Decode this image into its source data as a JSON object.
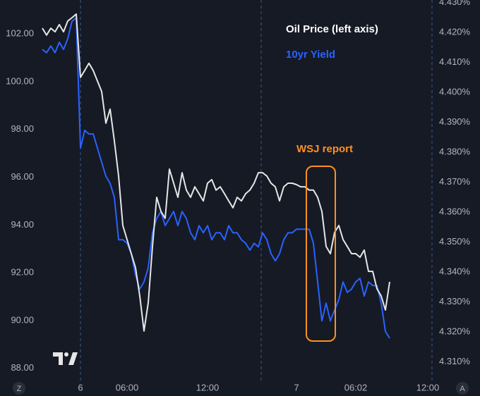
{
  "chart_data": {
    "type": "line",
    "categories": [
      null,
      null,
      null,
      null,
      null,
      null,
      null,
      null,
      null,
      "6",
      null,
      null,
      null,
      null,
      null,
      null,
      null,
      null,
      null,
      null,
      "06:00",
      null,
      null,
      null,
      null,
      null,
      null,
      null,
      null,
      null,
      null,
      null,
      null,
      null,
      null,
      null,
      null,
      null,
      null,
      "12:00",
      null,
      null,
      null,
      null,
      null,
      null,
      null,
      null,
      null,
      null,
      null,
      null,
      null,
      null,
      null,
      null,
      null,
      null,
      null,
      null,
      "7",
      null,
      null,
      null,
      null,
      null,
      null,
      null,
      null,
      null,
      null,
      null,
      null,
      null,
      "06:02",
      null,
      null,
      null,
      null,
      null,
      null,
      null,
      null,
      null,
      null,
      null,
      null,
      null,
      null,
      null,
      null,
      "12:00",
      null
    ],
    "series": [
      {
        "name": "Oil Price (left axis)",
        "color": "#e6e6e6",
        "axis": "y",
        "values": [
          102.24,
          101.95,
          102.24,
          102.09,
          102.39,
          102.09,
          102.54,
          102.68,
          102.83,
          100.18,
          100.47,
          100.77,
          100.47,
          100.03,
          99.59,
          98.26,
          98.85,
          97.52,
          96.05,
          93.98,
          93.39,
          92.8,
          92.21,
          91.03,
          89.56,
          90.74,
          93.1,
          95.16,
          94.57,
          94.28,
          96.34,
          95.75,
          95.16,
          96.19,
          95.46,
          95.16,
          95.6,
          95.31,
          95.01,
          95.75,
          95.9,
          95.46,
          95.6,
          95.31,
          95.01,
          94.72,
          95.16,
          95.01,
          95.31,
          95.46,
          95.75,
          96.19,
          96.19,
          96.05,
          95.75,
          95.6,
          95.01,
          95.6,
          95.75,
          95.75,
          95.69,
          95.6,
          95.6,
          95.46,
          95.46,
          95.16,
          94.57,
          93.1,
          92.8,
          93.69,
          93.98,
          93.39,
          93.1,
          92.8,
          92.8,
          92.65,
          92.95,
          92.06,
          92.06,
          91.33,
          91.03,
          90.44,
          91.62,
          null,
          null,
          null,
          null,
          null,
          null,
          null,
          null,
          null,
          null
        ]
      },
      {
        "name": "10yr Yield",
        "color": "#2962ff",
        "axis": "y2",
        "values": [
          4.4143,
          4.4132,
          4.4155,
          4.4132,
          4.4167,
          4.4143,
          4.4179,
          4.4237,
          4.4249,
          4.3814,
          4.3873,
          4.3861,
          4.3861,
          4.3814,
          4.3767,
          4.372,
          4.3696,
          4.3649,
          4.3508,
          4.3508,
          4.3496,
          4.3461,
          4.339,
          4.3343,
          4.3367,
          4.3414,
          4.3531,
          4.3579,
          4.3602,
          4.3555,
          4.3579,
          4.3602,
          4.3555,
          4.3602,
          4.3579,
          4.3531,
          4.3508,
          4.3555,
          4.3531,
          4.3555,
          4.3508,
          4.3531,
          4.3531,
          4.3508,
          4.3555,
          4.3531,
          4.3531,
          4.3508,
          4.3496,
          4.3473,
          4.3496,
          4.3484,
          4.3531,
          4.3508,
          4.3461,
          4.3437,
          4.3461,
          4.3508,
          4.3531,
          4.3531,
          4.3543,
          4.3543,
          4.3543,
          4.3543,
          4.3496,
          4.3367,
          4.3237,
          4.3296,
          4.3237,
          4.3273,
          4.3308,
          4.3367,
          4.3332,
          4.3343,
          4.3367,
          4.3379,
          4.332,
          4.3367,
          4.3355,
          4.3355,
          4.3296,
          4.3202,
          4.3179,
          null,
          null,
          null,
          null,
          null,
          null,
          null,
          null,
          null,
          null
        ]
      }
    ],
    "ylim": [
      87.49,
      103.42
    ],
    "yticks": [
      {
        "value": 88,
        "label": "88.00"
      },
      {
        "value": 90,
        "label": "90.00"
      },
      {
        "value": 92,
        "label": "92.00"
      },
      {
        "value": 94,
        "label": "94.00"
      },
      {
        "value": 96,
        "label": "96.00"
      },
      {
        "value": 98,
        "label": "98.00"
      },
      {
        "value": 100,
        "label": "100.00"
      },
      {
        "value": 102,
        "label": "102.00"
      }
    ],
    "y2lim": [
      4.3038,
      4.4308
    ],
    "y2ticks": [
      {
        "value": 4.31,
        "label": "4.310%"
      },
      {
        "value": 4.32,
        "label": "4.320%"
      },
      {
        "value": 4.33,
        "label": "4.330%"
      },
      {
        "value": 4.34,
        "label": "4.340%"
      },
      {
        "value": 4.35,
        "label": "4.350%"
      },
      {
        "value": 4.36,
        "label": "4.360%"
      },
      {
        "value": 4.37,
        "label": "4.370%"
      },
      {
        "value": 4.38,
        "label": "4.380%"
      },
      {
        "value": 4.39,
        "label": "4.390%"
      },
      {
        "value": 4.4,
        "label": "4.400%"
      },
      {
        "value": 4.41,
        "label": "4.410%"
      },
      {
        "value": 4.42,
        "label": "4.420%"
      },
      {
        "value": 4.43,
        "label": "4.430%"
      }
    ],
    "annotation": "WSJ report",
    "annotation_color": "#ff9020",
    "grid": false
  },
  "buttons": [
    "Z",
    "A"
  ]
}
